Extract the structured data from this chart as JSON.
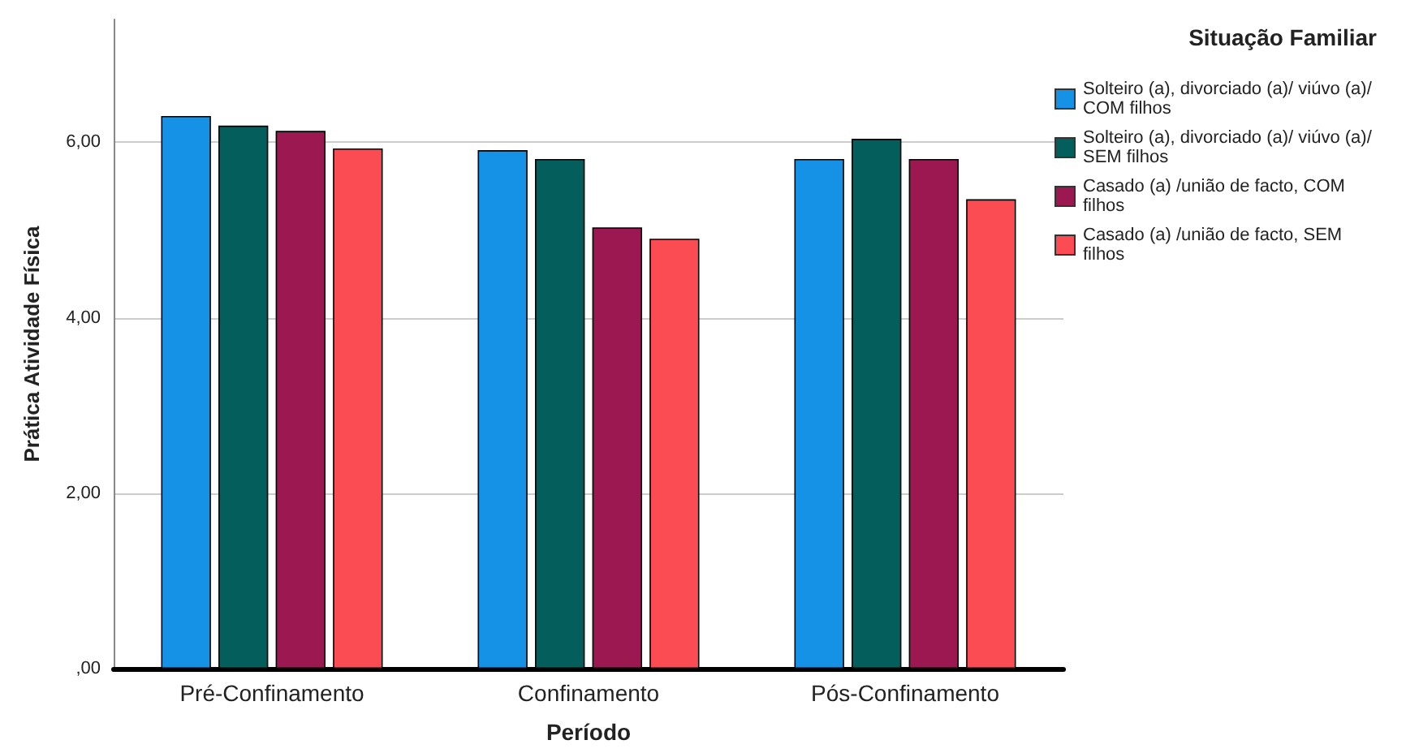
{
  "chart_data": {
    "type": "bar",
    "xlabel": "Período",
    "ylabel": "Prática Atividade Física",
    "legend_title": "Situação Familiar",
    "categories": [
      "Pré-Confinamento",
      "Confinamento",
      "Pós-Confinamento"
    ],
    "series": [
      {
        "name": "Solteiro (a), divorciado (a)/ viúvo (a)/ COM filhos",
        "color": "#1591e6",
        "values": [
          6.3,
          5.91,
          5.81
        ]
      },
      {
        "name": "Solteiro (a), divorciado (a)/ viúvo (a)/ SEM filhos",
        "color": "#035e5c",
        "values": [
          6.19,
          5.81,
          6.04
        ]
      },
      {
        "name": "Casado (a) /união de facto, COM filhos",
        "color": "#9b1850",
        "values": [
          6.13,
          5.03,
          5.81
        ]
      },
      {
        "name": "Casado (a) /união de facto, SEM filhos",
        "color": "#fb4c53",
        "values": [
          5.93,
          4.9,
          5.35
        ]
      }
    ],
    "ylim": [
      0,
      7.4
    ],
    "yticks": [
      {
        "value": 0,
        "label": ",00"
      },
      {
        "value": 2,
        "label": "2,00"
      },
      {
        "value": 4,
        "label": "4,00"
      },
      {
        "value": 6,
        "label": "6,00"
      }
    ],
    "grid": "y",
    "legend": "top right"
  }
}
